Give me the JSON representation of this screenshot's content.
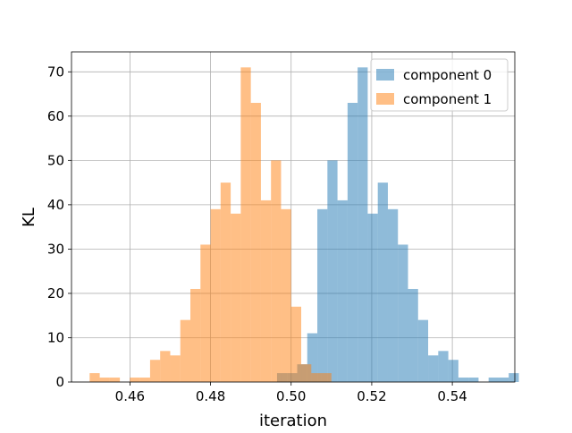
{
  "chart_data": {
    "type": "bar",
    "subtype": "overlaid-histogram",
    "title": "",
    "xlabel": "iteration",
    "ylabel": "KL",
    "xlim": [
      0.4455,
      0.5555
    ],
    "ylim": [
      0,
      74.5
    ],
    "xticks": [
      0.46,
      0.48,
      0.5,
      0.52,
      0.54
    ],
    "xtick_labels": [
      "0.46",
      "0.48",
      "0.50",
      "0.52",
      "0.54"
    ],
    "yticks": [
      0,
      10,
      20,
      30,
      40,
      50,
      60,
      70
    ],
    "ytick_labels": [
      "0",
      "10",
      "20",
      "30",
      "40",
      "50",
      "60",
      "70"
    ],
    "grid": true,
    "legend_position": "top-right",
    "series": [
      {
        "name": "component 0",
        "color": "#1f77b4",
        "opacity": 0.5,
        "bin_start": 0.4965,
        "bin_width": 0.0025,
        "values": [
          2,
          2,
          4,
          11,
          39,
          50,
          41,
          63,
          71,
          38,
          45,
          39,
          31,
          21,
          14,
          6,
          7,
          5,
          1,
          1,
          0,
          1,
          1,
          2
        ]
      },
      {
        "name": "component 1",
        "color": "#ff7f0e",
        "opacity": 0.5,
        "bin_start": 0.45,
        "bin_width": 0.0025,
        "values": [
          2,
          1,
          1,
          0,
          1,
          1,
          5,
          7,
          6,
          14,
          21,
          31,
          39,
          45,
          38,
          71,
          63,
          41,
          50,
          39,
          17,
          4,
          2,
          2
        ]
      }
    ]
  }
}
